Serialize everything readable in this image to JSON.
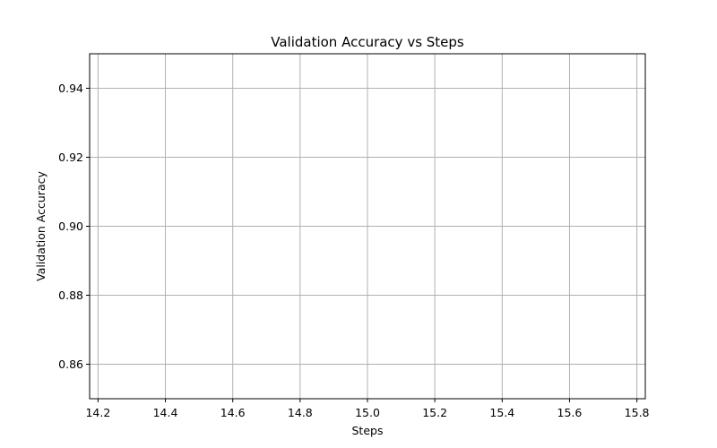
{
  "chart_data": {
    "type": "line",
    "title": "Validation Accuracy vs Steps",
    "xlabel": "Steps",
    "ylabel": "Validation Accuracy",
    "xlim": [
      14.175,
      15.825
    ],
    "ylim": [
      0.85,
      0.95
    ],
    "xticks": [
      14.2,
      14.4,
      14.6,
      14.8,
      15.0,
      15.2,
      15.4,
      15.6,
      15.8
    ],
    "xtick_labels": [
      "14.2",
      "14.4",
      "14.6",
      "14.8",
      "15.0",
      "15.2",
      "15.4",
      "15.6",
      "15.8"
    ],
    "yticks": [
      0.86,
      0.88,
      0.9,
      0.92,
      0.94
    ],
    "ytick_labels": [
      "0.86",
      "0.88",
      "0.90",
      "0.92",
      "0.94"
    ],
    "grid": true,
    "series": [
      {
        "name": "Validation Accuracy",
        "x": [],
        "y": []
      }
    ]
  }
}
